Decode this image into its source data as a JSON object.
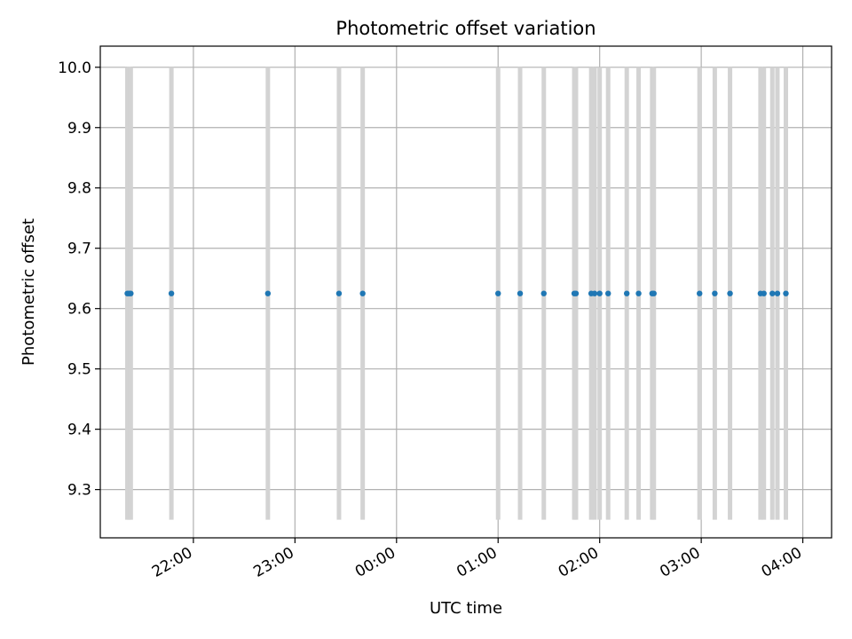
{
  "chart_data": {
    "type": "scatter",
    "title": "Photometric offset variation",
    "xlabel": "UTC time",
    "ylabel": "Photometric offset",
    "ylim": [
      9.22,
      10.035
    ],
    "xlim": [
      "21:05",
      "04:17"
    ],
    "grid": true,
    "x_tick_labels": [
      "22:00",
      "23:00",
      "00:00",
      "01:00",
      "02:00",
      "03:00",
      "04:00"
    ],
    "y_tick_labels": [
      "9.3",
      "9.4",
      "9.5",
      "9.6",
      "9.7",
      "9.8",
      "9.9",
      "10.0"
    ],
    "y_ticks": [
      9.3,
      9.4,
      9.5,
      9.6,
      9.7,
      9.8,
      9.9,
      10.0
    ],
    "band_range": [
      9.25,
      10.0
    ],
    "colors": {
      "points": "#1f77b4",
      "bands": "#d3d3d3",
      "grid": "#b0b0b0"
    },
    "points": [
      {
        "x": "21:21",
        "y": 9.625
      },
      {
        "x": "21:22",
        "y": 9.625
      },
      {
        "x": "21:23",
        "y": 9.625
      },
      {
        "x": "21:47",
        "y": 9.625
      },
      {
        "x": "22:44",
        "y": 9.625
      },
      {
        "x": "23:26",
        "y": 9.625
      },
      {
        "x": "23:40",
        "y": 9.625
      },
      {
        "x": "01:00",
        "y": 9.625
      },
      {
        "x": "01:13",
        "y": 9.625
      },
      {
        "x": "01:27",
        "y": 9.625
      },
      {
        "x": "01:45",
        "y": 9.625
      },
      {
        "x": "01:46",
        "y": 9.625
      },
      {
        "x": "01:55",
        "y": 9.625
      },
      {
        "x": "01:57",
        "y": 9.625
      },
      {
        "x": "02:00",
        "y": 9.625
      },
      {
        "x": "02:05",
        "y": 9.625
      },
      {
        "x": "02:16",
        "y": 9.625
      },
      {
        "x": "02:23",
        "y": 9.625
      },
      {
        "x": "02:31",
        "y": 9.625
      },
      {
        "x": "02:32",
        "y": 9.625
      },
      {
        "x": "02:59",
        "y": 9.625
      },
      {
        "x": "03:08",
        "y": 9.625
      },
      {
        "x": "03:17",
        "y": 9.625
      },
      {
        "x": "03:35",
        "y": 9.625
      },
      {
        "x": "03:37",
        "y": 9.625
      },
      {
        "x": "03:42",
        "y": 9.625
      },
      {
        "x": "03:45",
        "y": 9.625
      },
      {
        "x": "03:50",
        "y": 9.625
      }
    ]
  }
}
